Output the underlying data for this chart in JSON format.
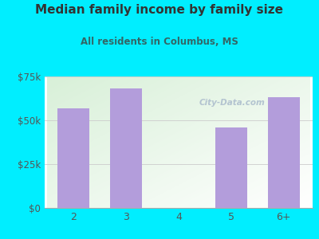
{
  "title": "Median family income by family size",
  "subtitle": "All residents in Columbus, MS",
  "categories": [
    "2",
    "3",
    "4",
    "5",
    "6+"
  ],
  "values": [
    57000,
    68000,
    0,
    46000,
    63000
  ],
  "bar_color": "#b39ddb",
  "background_outer": "#00eeff",
  "gradient_top_left": "#d8f0d8",
  "gradient_bottom_right": "#ffffff",
  "title_color": "#333333",
  "subtitle_color": "#336666",
  "axis_label_color": "#555555",
  "ylim": [
    0,
    75000
  ],
  "yticks": [
    0,
    25000,
    50000,
    75000
  ],
  "ytick_labels": [
    "$0",
    "$25k",
    "$50k",
    "$75k"
  ],
  "watermark_text": "City-Data.com",
  "watermark_color": "#aabbcc"
}
